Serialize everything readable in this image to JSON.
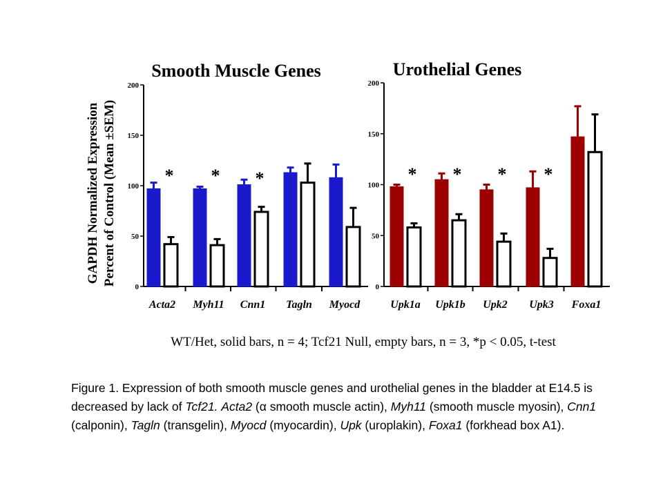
{
  "chart_data": [
    {
      "type": "bar",
      "title": "Smooth Muscle Genes",
      "ylabel": "GAPDH Normalized Expression",
      "ylabel2": "Percent of Control (Mean ±SEM)",
      "ylim": [
        0,
        200
      ],
      "yticks": [
        "0",
        "50",
        "100",
        "150",
        "200"
      ],
      "categories": [
        "Acta2",
        "Myh11",
        "Cnn1",
        "Tagln",
        "Myocd"
      ],
      "significance": [
        "*",
        "*",
        "*",
        "",
        ""
      ],
      "series": [
        {
          "fill": "#1a1acc",
          "values": [
            97,
            97,
            101,
            113,
            108
          ],
          "errors": [
            6,
            2,
            5,
            5,
            13
          ]
        },
        {
          "fill": "#ffffff",
          "values": [
            42,
            41,
            74,
            103,
            59
          ],
          "errors": [
            7,
            6,
            5,
            19,
            19
          ]
        }
      ]
    },
    {
      "type": "bar",
      "title": "Urothelial Genes",
      "ylim": [
        0,
        200
      ],
      "yticks": [
        "0",
        "50",
        "100",
        "150",
        "200"
      ],
      "categories": [
        "Upk1a",
        "Upk1b",
        "Upk2",
        "Upk3",
        "Foxa1"
      ],
      "significance": [
        "*",
        "*",
        "*",
        "*",
        ""
      ],
      "series": [
        {
          "fill": "#9c0000",
          "values": [
            98,
            105,
            95,
            97,
            147
          ],
          "errors": [
            2,
            6,
            5,
            16,
            30
          ]
        },
        {
          "fill": "#ffffff",
          "values": [
            58,
            65,
            44,
            28,
            132
          ],
          "errors": [
            4,
            6,
            8,
            9,
            37
          ]
        }
      ]
    }
  ],
  "footnote": "WT/Het, solid bars, n = 4; Tcf21 Null, empty bars, n = 3, *p < 0.05, t-test",
  "caption": {
    "lead": "Figure 1. Expression of both smooth muscle genes and urothelial genes in the bladder at E14.5 is decreased by lack of",
    "gene_tcf21": "Tcf21.",
    "acta2": "Acta2",
    "acta2_desc": " (α smooth muscle actin),",
    "myh11": "Myh11",
    "myh11_desc": " (smooth muscle myosin),",
    "cnn1": "Cnn1",
    "cnn1_desc": " (calponin),",
    "tagln": "Tagln",
    "tagln_desc": " (transgelin),",
    "myocd": "Myocd",
    "myocd_desc": " (myocardin),",
    "upk": "Upk",
    "upk_desc": " (uroplakin),",
    "foxa1": "Foxa1",
    "foxa1_desc": " (forkhead box A1)."
  }
}
